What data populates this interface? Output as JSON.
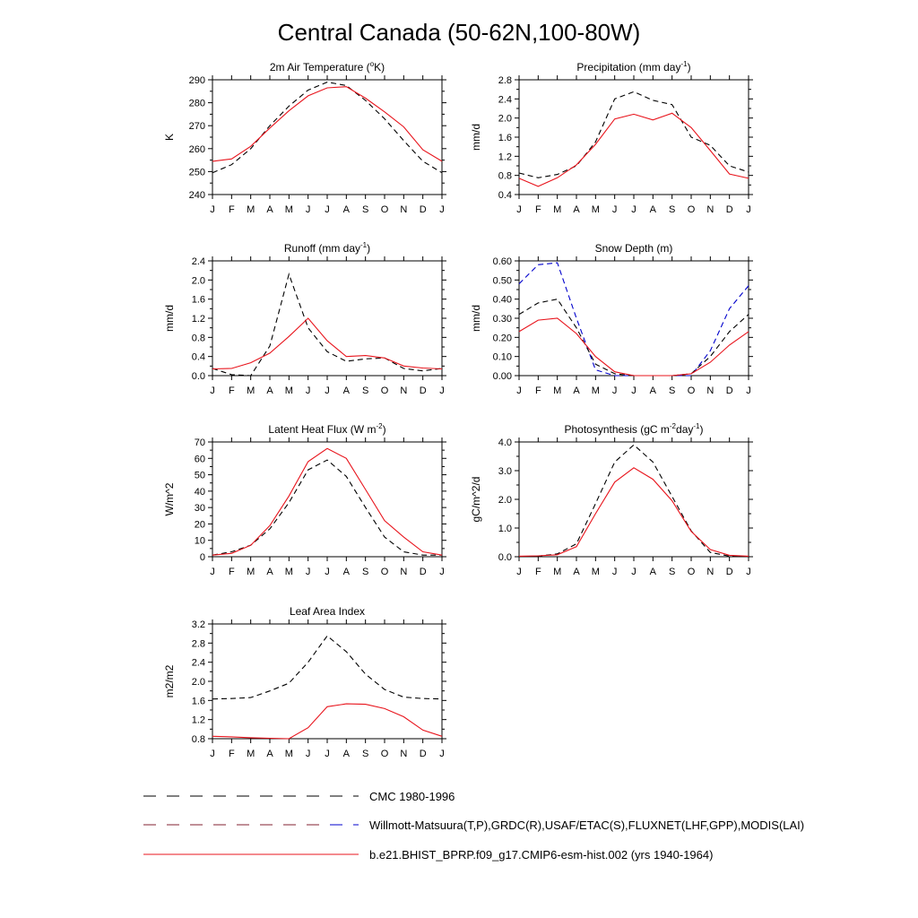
{
  "title": "Central Canada (50-62N,100-80W)",
  "months": [
    "J",
    "F",
    "M",
    "A",
    "M",
    "J",
    "J",
    "A",
    "S",
    "O",
    "N",
    "D",
    "J"
  ],
  "colors": {
    "obs_black": "#000000",
    "obs_blue": "#0000cc",
    "model": "#e8141c"
  },
  "legend": [
    {
      "label": "CMC 1980-1996",
      "style": "dash-black"
    },
    {
      "label": "Willmott-Matsuura(T,P),GRDC(R),USAF/ETAC(S),FLUXNET(LHF,GPP),MODIS(LAI)",
      "style": "dash-mixed"
    },
    {
      "label": "b.e21.BHIST_BPRP.f09_g17.CMIP6-esm-hist.002 (yrs 1940-1964)",
      "style": "solid-red"
    }
  ],
  "chart_data": [
    {
      "type": "line",
      "title": "2m Air Temperature (°K)",
      "title_parts": [
        "2m Air Temperature (",
        "o",
        "K)"
      ],
      "ylabel": "K",
      "ylim": [
        240,
        290
      ],
      "yticks": [
        240,
        250,
        260,
        270,
        280,
        290
      ],
      "ytick_labels": [
        "240",
        "250",
        "260",
        "270",
        "280",
        "290"
      ],
      "series": [
        {
          "color": "#000000",
          "dash": true,
          "values": [
            249.5,
            253,
            260,
            270,
            278.5,
            285.5,
            289,
            287.5,
            281,
            273,
            263.5,
            254.5,
            249.5
          ]
        },
        {
          "color": "#e8141c",
          "dash": false,
          "values": [
            254.5,
            255.5,
            261,
            269,
            276.5,
            283,
            286.5,
            287,
            282,
            276,
            269.5,
            259.5,
            254.5
          ]
        }
      ]
    },
    {
      "type": "line",
      "title": "Precipitation (mm day-1)",
      "title_parts": [
        "Precipitation (mm day",
        "-1",
        ")"
      ],
      "ylabel": "mm/d",
      "ylim": [
        0.4,
        2.8
      ],
      "yticks": [
        0.4,
        0.8,
        1.2,
        1.6,
        2.0,
        2.4,
        2.8
      ],
      "ytick_labels": [
        "0.4",
        "0.8",
        "1.2",
        "1.6",
        "2.0",
        "2.4",
        "2.8"
      ],
      "series": [
        {
          "color": "#000000",
          "dash": true,
          "values": [
            0.85,
            0.75,
            0.82,
            1.0,
            1.5,
            2.4,
            2.55,
            2.37,
            2.28,
            1.6,
            1.43,
            1.0,
            0.87
          ]
        },
        {
          "color": "#e8141c",
          "dash": false,
          "values": [
            0.74,
            0.57,
            0.75,
            1.02,
            1.45,
            1.98,
            2.08,
            1.96,
            2.1,
            1.8,
            1.32,
            0.83,
            0.74
          ]
        }
      ]
    },
    {
      "type": "line",
      "title": "Runoff (mm day-1)",
      "title_parts": [
        "Runoff (mm day",
        "-1",
        ")"
      ],
      "ylabel": "mm/d",
      "ylim": [
        0.0,
        2.4
      ],
      "yticks": [
        0.0,
        0.4,
        0.8,
        1.2,
        1.6,
        2.0,
        2.4
      ],
      "ytick_labels": [
        "0.0",
        "0.4",
        "0.8",
        "1.2",
        "1.6",
        "2.0",
        "2.4"
      ],
      "series": [
        {
          "color": "#000000",
          "dash": true,
          "values": [
            0.15,
            0.02,
            0.0,
            0.62,
            2.12,
            1.0,
            0.5,
            0.3,
            0.35,
            0.37,
            0.15,
            0.1,
            0.15
          ]
        },
        {
          "color": "#e8141c",
          "dash": false,
          "values": [
            0.14,
            0.15,
            0.27,
            0.47,
            0.82,
            1.2,
            0.73,
            0.4,
            0.42,
            0.37,
            0.2,
            0.16,
            0.14
          ]
        }
      ]
    },
    {
      "type": "line",
      "title": "Snow Depth (m)",
      "title_parts": [
        "Snow Depth (m)"
      ],
      "ylabel": "mm/d",
      "ylim": [
        0.0,
        0.6
      ],
      "yticks": [
        0.0,
        0.1,
        0.2,
        0.3,
        0.4,
        0.5,
        0.6
      ],
      "ytick_labels": [
        "0.00",
        "0.10",
        "0.20",
        "0.30",
        "0.40",
        "0.50",
        "0.60"
      ],
      "series": [
        {
          "color": "#0000cc",
          "dash": true,
          "values": [
            0.48,
            0.58,
            0.59,
            0.3,
            0.03,
            0.0,
            0.0,
            0.0,
            0.0,
            0.0,
            0.13,
            0.35,
            0.47
          ]
        },
        {
          "color": "#000000",
          "dash": true,
          "values": [
            0.32,
            0.38,
            0.4,
            0.25,
            0.06,
            0.01,
            0.0,
            0.0,
            0.0,
            0.01,
            0.1,
            0.23,
            0.32
          ]
        },
        {
          "color": "#e8141c",
          "dash": false,
          "values": [
            0.23,
            0.29,
            0.3,
            0.22,
            0.1,
            0.02,
            0.0,
            0.0,
            0.0,
            0.01,
            0.07,
            0.16,
            0.23
          ]
        }
      ]
    },
    {
      "type": "line",
      "title": "Latent Heat Flux (W m-2)",
      "title_parts": [
        "Latent Heat Flux (W m",
        "-2",
        ")"
      ],
      "ylabel": "W/m^2",
      "ylim": [
        0,
        70
      ],
      "yticks": [
        0,
        10,
        20,
        30,
        40,
        50,
        60,
        70
      ],
      "ytick_labels": [
        "0",
        "10",
        "20",
        "30",
        "40",
        "50",
        "60",
        "70"
      ],
      "series": [
        {
          "color": "#000000",
          "dash": true,
          "values": [
            1,
            3,
            7,
            17,
            33,
            53,
            59,
            49,
            30,
            12,
            3,
            1,
            1
          ]
        },
        {
          "color": "#e8141c",
          "dash": false,
          "values": [
            1,
            2,
            7,
            19,
            37,
            58,
            66,
            60,
            41,
            22,
            12,
            3,
            1
          ]
        }
      ]
    },
    {
      "type": "line",
      "title": "Photosynthesis (gC m-2day-1)",
      "title_parts": [
        "Photosynthesis (gC m",
        "-2",
        "day",
        "-1",
        ")"
      ],
      "ylabel": "gC/m^2/d",
      "ylim": [
        0.0,
        4.0
      ],
      "yticks": [
        0.0,
        1.0,
        2.0,
        3.0,
        4.0
      ],
      "ytick_labels": [
        "0.0",
        "1.0",
        "2.0",
        "3.0",
        "4.0"
      ],
      "series": [
        {
          "color": "#000000",
          "dash": true,
          "values": [
            0.0,
            0.02,
            0.1,
            0.45,
            1.85,
            3.3,
            3.9,
            3.3,
            2.1,
            0.9,
            0.15,
            0.02,
            0.0
          ]
        },
        {
          "color": "#e8141c",
          "dash": false,
          "values": [
            0.02,
            0.03,
            0.07,
            0.35,
            1.5,
            2.6,
            3.1,
            2.7,
            1.95,
            0.88,
            0.25,
            0.05,
            0.02
          ]
        }
      ]
    },
    {
      "type": "line",
      "title": "Leaf Area Index",
      "title_parts": [
        "Leaf Area Index"
      ],
      "ylabel": "m2/m2",
      "ylim": [
        0.8,
        3.2
      ],
      "yticks": [
        0.8,
        1.2,
        1.6,
        2.0,
        2.4,
        2.8,
        3.2
      ],
      "ytick_labels": [
        "0.8",
        "1.2",
        "1.6",
        "2.0",
        "2.4",
        "2.8",
        "3.2"
      ],
      "series": [
        {
          "color": "#000000",
          "dash": true,
          "values": [
            1.63,
            1.64,
            1.66,
            1.8,
            1.96,
            2.4,
            2.95,
            2.62,
            2.15,
            1.83,
            1.67,
            1.64,
            1.63
          ]
        },
        {
          "color": "#e8141c",
          "dash": false,
          "values": [
            0.85,
            0.84,
            0.82,
            0.81,
            0.8,
            1.03,
            1.47,
            1.53,
            1.52,
            1.43,
            1.26,
            0.98,
            0.85
          ]
        }
      ]
    }
  ]
}
